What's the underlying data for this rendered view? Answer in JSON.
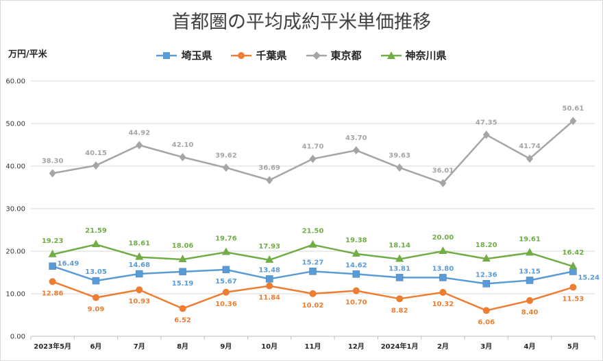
{
  "chart_data": {
    "type": "line",
    "title": "首都圏の平均成約平米単価推移",
    "ylabel": "万円/平米",
    "xlabel": "",
    "ylim": [
      0,
      60
    ],
    "yticks": [
      "0.00",
      "10.00",
      "20.00",
      "30.00",
      "40.00",
      "50.00",
      "60.00"
    ],
    "grid": true,
    "legend_position": "top",
    "categories": [
      "2023年5月",
      "6月",
      "7月",
      "8月",
      "9月",
      "10月",
      "11月",
      "12月",
      "2024年1月",
      "2月",
      "3月",
      "4月",
      "5月"
    ],
    "series": [
      {
        "name": "埼玉県",
        "color": "#5b9bd5",
        "marker": "square",
        "values": [
          16.49,
          13.05,
          14.68,
          15.19,
          15.67,
          13.48,
          15.27,
          14.62,
          13.81,
          13.8,
          12.36,
          13.15,
          15.24
        ],
        "labels": [
          "16.49",
          "13.05",
          "14.68",
          "15.19",
          "15.67",
          "13.48",
          "15.27",
          "14.62",
          "13.81",
          "13.80",
          "12.36",
          "13.15",
          "15.24"
        ]
      },
      {
        "name": "千葉県",
        "color": "#ed7d31",
        "marker": "circle",
        "values": [
          12.86,
          9.09,
          10.93,
          6.52,
          10.36,
          11.84,
          10.02,
          10.7,
          8.82,
          10.32,
          6.06,
          8.4,
          11.53
        ],
        "labels": [
          "12.86",
          "9.09",
          "10.93",
          "6.52",
          "10.36",
          "11.84",
          "10.02",
          "10.70",
          "8.82",
          "10.32",
          "6.06",
          "8.40",
          "11.53"
        ]
      },
      {
        "name": "東京都",
        "color": "#a5a5a5",
        "marker": "diamond",
        "values": [
          38.3,
          40.15,
          44.92,
          42.1,
          39.62,
          36.69,
          41.7,
          43.7,
          39.63,
          36.01,
          47.35,
          41.74,
          50.61
        ],
        "labels": [
          "38.30",
          "40.15",
          "44.92",
          "42.10",
          "39.62",
          "36.69",
          "41.70",
          "43.70",
          "39.63",
          "36.01",
          "47.35",
          "41.74",
          "50.61"
        ]
      },
      {
        "name": "神奈川県",
        "color": "#70ad47",
        "marker": "triangle",
        "values": [
          19.23,
          21.59,
          18.61,
          18.06,
          19.76,
          17.93,
          21.5,
          19.38,
          18.14,
          20.0,
          18.2,
          19.61,
          16.42
        ],
        "labels": [
          "19.23",
          "21.59",
          "18.61",
          "18.06",
          "19.76",
          "17.93",
          "21.50",
          "19.38",
          "18.14",
          "20.00",
          "18.20",
          "19.61",
          "16.42"
        ]
      }
    ]
  }
}
